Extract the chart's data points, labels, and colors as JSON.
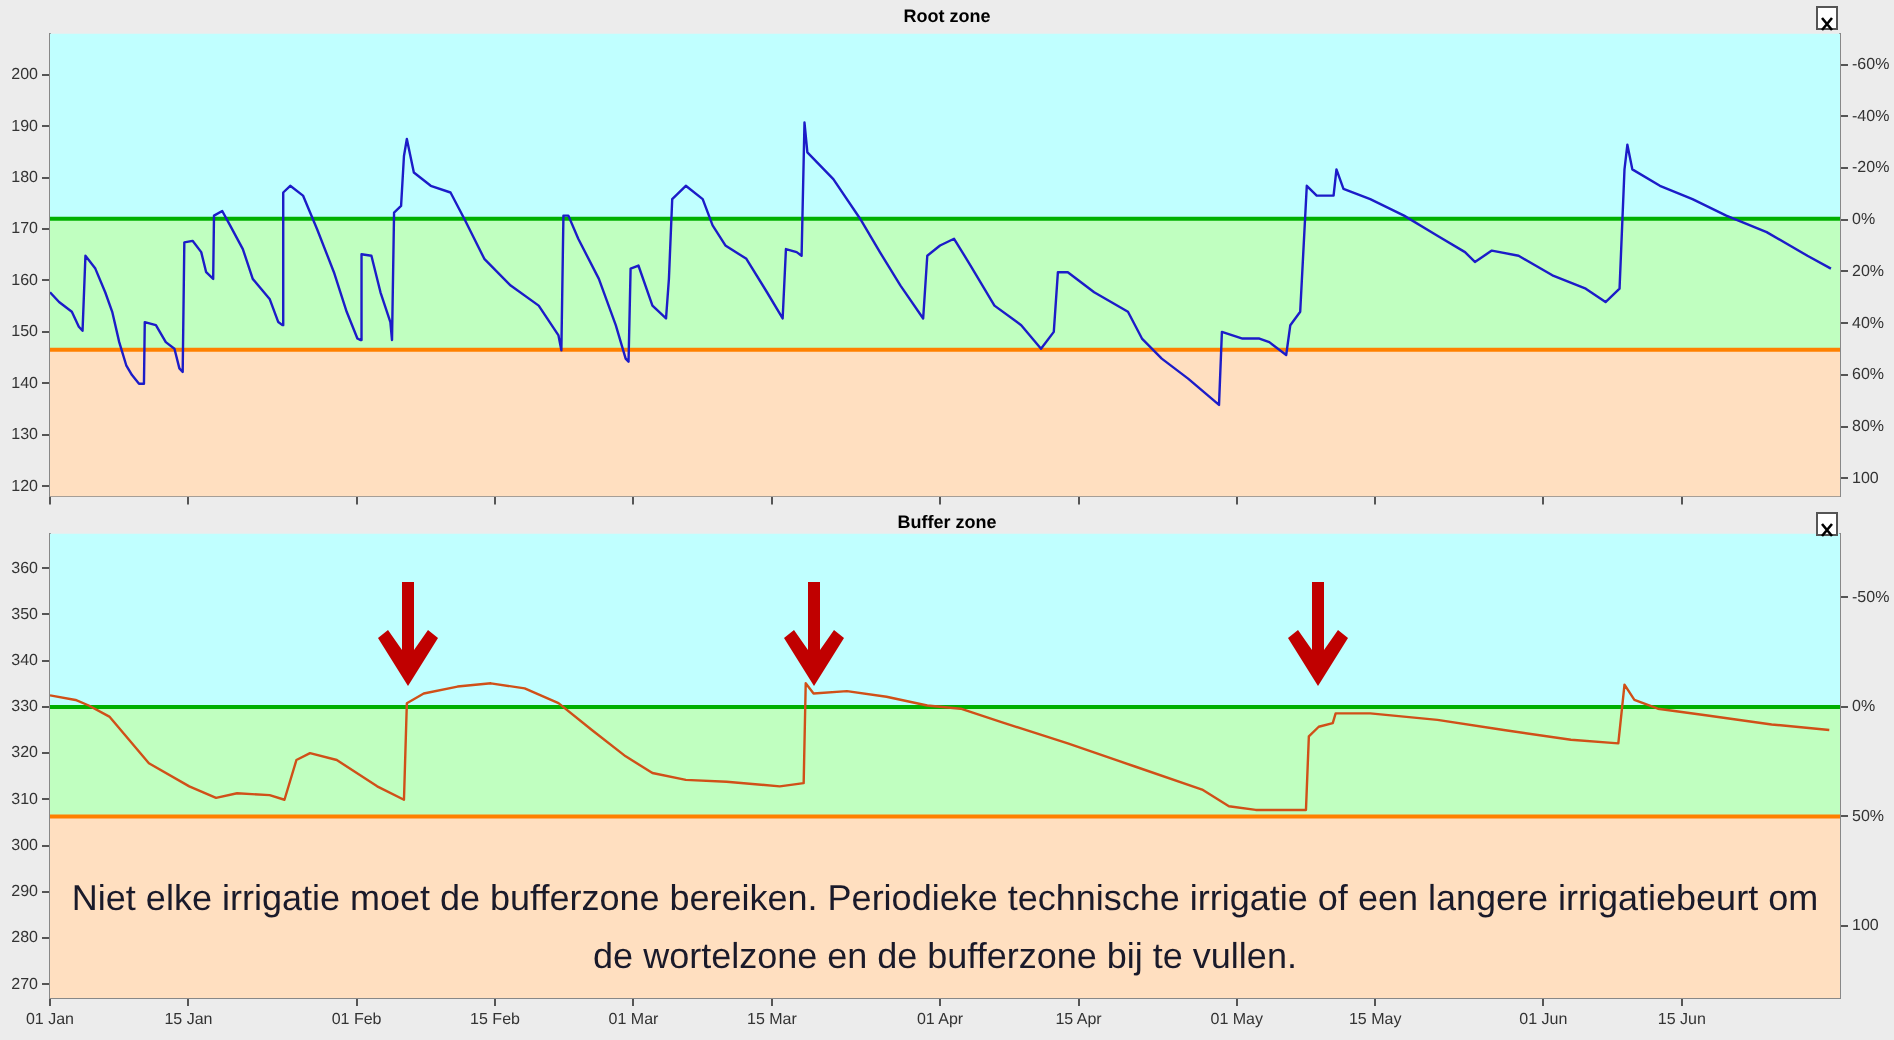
{
  "chart_data": [
    {
      "type": "line",
      "title": "Root zone",
      "legend": false,
      "grid": false,
      "tick_labels": "y",
      "xlim": [
        "--01-01",
        "--07-01"
      ],
      "xticks": [
        "--01-01",
        "--01-15",
        "--02-01",
        "--02-15",
        "--03-01",
        "--03-15",
        "--04-01",
        "--04-15",
        "--05-01",
        "--05-15",
        "--06-01",
        "--06-15"
      ],
      "ylim": [
        118,
        208
      ],
      "yticks": [
        120,
        130,
        140,
        150,
        160,
        170,
        180,
        190,
        200
      ],
      "y2lim": [
        107,
        -72
      ],
      "y2ticks": [
        {
          "value": -60,
          "label": "-60%"
        },
        {
          "value": -40,
          "label": "-40%"
        },
        {
          "value": -20,
          "label": "-20%"
        },
        {
          "value": 0,
          "label": "0%"
        },
        {
          "value": 20,
          "label": "20%"
        },
        {
          "value": 40,
          "label": "40%"
        },
        {
          "value": 60,
          "label": "60%"
        },
        {
          "value": 80,
          "label": "80%"
        },
        {
          "value": 100,
          "label": "100"
        }
      ],
      "bands": [
        {
          "axis": "y",
          "from": 172,
          "to": 208,
          "color": "#c0ffff"
        },
        {
          "axis": "y",
          "from": 146.5,
          "to": 172,
          "color": "#c0ffc0"
        },
        {
          "axis": "y",
          "from": 118,
          "to": 146.5,
          "color": "#ffdfc0"
        }
      ],
      "ref_lines": [
        {
          "axis": "y",
          "value": 172,
          "color": "#00b000"
        },
        {
          "axis": "y",
          "value": 146.5,
          "color": "#ff8000"
        }
      ],
      "series": [
        {
          "color": "#1c1cc8",
          "x": [
            "--01-01T00:00",
            "--01-01T22:00",
            "--01-03T05:00",
            "--01-03T22:00",
            "--01-04T07:00",
            "--01-04T14:00",
            "--01-05T14:00",
            "--01-06T14:00",
            "--01-07T07:00",
            "--01-08T00:00",
            "--01-08T17:00",
            "--01-09T07:00",
            "--01-10T00:00",
            "--01-10T12:00",
            "--01-10T14:00",
            "--01-11T17:00",
            "--01-12T17:00",
            "--01-13T14:00",
            "--01-14T02:00",
            "--01-14T10:00",
            "--01-14T14:00",
            "--01-15T10:00",
            "--01-16T07:00",
            "--01-16T19:00",
            "--01-17T12:00",
            "--01-17T14:00",
            "--01-18T10:00",
            "--01-19T05:00",
            "--01-20T12:00",
            "--01-21T12:00",
            "--01-23T05:00",
            "--01-24T02:00",
            "--01-24T12:00",
            "--01-24T14:00",
            "--01-25T07:00",
            "--01-26T14:00",
            "--01-28T00:00",
            "--01-29T17:00",
            "--01-31T00:00",
            "--02-01T02:00",
            "--02-01T10:00",
            "--02-01T12:00",
            "--02-02T12:00",
            "--02-03T10:00",
            "--02-04T10:00",
            "--02-04T14:00",
            "--02-04T19:00",
            "--02-05T12:00",
            "--02-05T19:00",
            "--02-06T02:00",
            "--02-06T19:00",
            "--02-08T12:00",
            "--02-10T12:00",
            "--02-11T22:00",
            "--02-13T22:00",
            "--02-16T14:00",
            "--02-19T10:00",
            "--02-21T10:00",
            "--02-21T17:00",
            "--02-21T22:00",
            "--02-22T10:00",
            "--02-23T10:00",
            "--02-25T12:00",
            "--02-27T05:00",
            "--02-28T05:00",
            "--02-28T12:00",
            "--02-28T17:00",
            "--03-01T12:00",
            "--03-02T22:00",
            "--03-04T07:00",
            "--03-04T14:00",
            "--03-04T22:00",
            "--03-06T07:00",
            "--03-08T00:00",
            "--03-09T00:00",
            "--03-10T07:00",
            "--03-12T10:00",
            "--03-14T12:00",
            "--03-16T02:00",
            "--03-16T10:00",
            "--03-17T12:00",
            "--03-18T00:00",
            "--03-18T07:00",
            "--03-18T14:00",
            "--03-21T05:00",
            "--03-23T22:00",
            "--03-25T22:00",
            "--03-28T00:00",
            "--03-30T07:00",
            "--03-30T17:00",
            "--04-01T00:00",
            "--04-02T10:00",
            "--04-04T02:00",
            "--04-06T12:00",
            "--04-09T05:00",
            "--04-11T05:00",
            "--04-12T12:00",
            "--04-12T22:00",
            "--04-13T22:00",
            "--04-16T14:00",
            "--04-20T00:00",
            "--04-21T10:00",
            "--04-23T10:00",
            "--04-26T02:00",
            "--04-29T05:00",
            "--04-29T12:00",
            "--05-01T14:00",
            "--05-03T07:00",
            "--05-04T07:00",
            "--05-06T00:00",
            "--05-06T10:00",
            "--05-07T10:00",
            "--05-08T02:00",
            "--05-09T02:00",
            "--05-10T19:00",
            "--05-11T02:00",
            "--05-11T19:00",
            "--05-14T12:00",
            "--05-17T22:00",
            "--05-21T07:00",
            "--05-24T02:00",
            "--05-25T02:00",
            "--05-26T19:00",
            "--05-29T12:00",
            "--06-01T22:00",
            "--06-05T07:00",
            "--06-07T07:00",
            "--06-08T17:00",
            "--06-09T05:00",
            "--06-09T12:00",
            "--06-10T00:00",
            "--06-12T19:00",
            "--06-16T02:00",
            "--06-19T12:00",
            "--06-23T14:00",
            "--06-27T17:00",
            "--06-30T02:00"
          ],
          "values": [
            157.7,
            155.8,
            153.9,
            151,
            150.2,
            164.8,
            162.3,
            157.7,
            153.9,
            148,
            143.5,
            141.6,
            139.9,
            139.9,
            151.9,
            151.3,
            148,
            146.7,
            142.9,
            142.2,
            167.4,
            167.7,
            165.5,
            161.6,
            160.3,
            172.6,
            173.5,
            170.7,
            166.1,
            160.3,
            156.4,
            151.9,
            151.3,
            177.1,
            178.4,
            176.5,
            170,
            161.6,
            153.9,
            148.7,
            148.4,
            165.1,
            164.8,
            157.7,
            151.9,
            148.4,
            173.2,
            174.5,
            184.2,
            187.5,
            181,
            178.4,
            177.1,
            171.9,
            164.2,
            159,
            155.1,
            149.3,
            146.4,
            172.6,
            172.6,
            168.1,
            160.3,
            151.3,
            144.8,
            144.2,
            162.3,
            162.9,
            155.1,
            152.6,
            160.3,
            175.8,
            178.4,
            175.8,
            170.7,
            166.8,
            164.2,
            157.7,
            152.6,
            166.1,
            165.5,
            164.8,
            190.7,
            184.9,
            179.7,
            172,
            165.5,
            159,
            152.6,
            164.8,
            166.8,
            168.1,
            162.9,
            155.1,
            151.3,
            146.7,
            150,
            161.6,
            161.6,
            157.7,
            153.9,
            148.7,
            144.8,
            140.9,
            135.8,
            150,
            148.7,
            148.7,
            148,
            145.5,
            151.3,
            153.9,
            178.4,
            176.5,
            176.5,
            181.6,
            177.8,
            175.8,
            172.6,
            168.7,
            165.5,
            163.6,
            165.8,
            164.8,
            161,
            158.4,
            155.8,
            158.4,
            181.6,
            186.4,
            181.6,
            178.4,
            175.8,
            172.6,
            169.4,
            164.8,
            162.3
          ]
        }
      ]
    },
    {
      "type": "line",
      "title": "Buffer zone",
      "legend": false,
      "grid": false,
      "xlim": [
        "--01-01",
        "--07-01"
      ],
      "xticks": [
        {
          "value": "--01-01",
          "label": "01 Jan"
        },
        {
          "value": "--01-15",
          "label": "15 Jan"
        },
        {
          "value": "--02-01",
          "label": "01 Feb"
        },
        {
          "value": "--02-15",
          "label": "15 Feb"
        },
        {
          "value": "--03-01",
          "label": "01 Mar"
        },
        {
          "value": "--03-15",
          "label": "15 Mar"
        },
        {
          "value": "--04-01",
          "label": "01 Apr"
        },
        {
          "value": "--04-15",
          "label": "15 Apr"
        },
        {
          "value": "--05-01",
          "label": "01 May"
        },
        {
          "value": "--05-15",
          "label": "15 May"
        },
        {
          "value": "--06-01",
          "label": "01 Jun"
        },
        {
          "value": "--06-15",
          "label": "15 Jun"
        }
      ],
      "ylim": [
        267,
        367.5
      ],
      "yticks": [
        270,
        280,
        290,
        300,
        310,
        320,
        330,
        340,
        350,
        360
      ],
      "y2lim": [
        133,
        -79
      ],
      "y2ticks": [
        {
          "value": -50,
          "label": "-50%"
        },
        {
          "value": 0,
          "label": "0%"
        },
        {
          "value": 50,
          "label": "50%"
        },
        {
          "value": 100,
          "label": "100"
        }
      ],
      "bands": [
        {
          "axis": "y",
          "from": 330,
          "to": 367.5,
          "color": "#c0ffff"
        },
        {
          "axis": "y",
          "from": 306.3,
          "to": 330,
          "color": "#c0ffc0"
        },
        {
          "axis": "y",
          "from": 267,
          "to": 306.3,
          "color": "#ffdfc0"
        }
      ],
      "ref_lines": [
        {
          "axis": "y",
          "value": 330,
          "color": "#00b000"
        },
        {
          "axis": "y",
          "value": 306.3,
          "color": "#ff8000"
        }
      ],
      "annotations": [
        "Niet elke irrigatie moet de bufferzone bereiken. Periodieke technische irrigatie of een langere irrigatiebeurt om de wortelzone en de bufferzone bij te vullen."
      ],
      "series": [
        {
          "color": "#d05018",
          "x": [
            "--01-01T00:00",
            "--01-03T14:00",
            "--01-04T22:00",
            "--01-07T00:00",
            "--01-11T00:00",
            "--01-15T02:00",
            "--01-17T19:00",
            "--01-19T22:00",
            "--01-23T05:00",
            "--01-24T17:00",
            "--01-25T22:00",
            "--01-27T07:00",
            "--01-30T00:00",
            "--02-03T02:00",
            "--02-05T19:00",
            "--02-06T02:00",
            "--02-07T19:00",
            "--02-11T05:00",
            "--02-14T14:00",
            "--02-18T00:00",
            "--02-21T10:00",
            "--02-24T19:00",
            "--02-28T05:00",
            "--03-02T22:00",
            "--03-06T07:00",
            "--03-10T10:00",
            "--03-15T19:00",
            "--03-18T05:00",
            "--03-18T10:00",
            "--03-19T05:00",
            "--03-22T14:00",
            "--03-26T14:00",
            "--03-30T17:00",
            "--04-03T02:00",
            "--04-07T05:00",
            "--04-13T22:00",
            "--04-20T17:00",
            "--04-27T12:00",
            "--04-30T05:00",
            "--05-02T22:00",
            "--05-08T00:00",
            "--05-08T07:00",
            "--05-09T07:00",
            "--05-10T17:00",
            "--05-11T00:00",
            "--05-14T12:00",
            "--05-21T07:00",
            "--05-28T00:00",
            "--06-03T19:00",
            "--06-08T14:00",
            "--06-09T05:00",
            "--06-10T05:00",
            "--06-12T14:00",
            "--06-17T10:00",
            "--06-24T02:00",
            "--06-29T22:00"
          ],
          "values": [
            332.5,
            331.5,
            330.3,
            327.9,
            317.8,
            312.8,
            310.3,
            311.3,
            310.9,
            309.9,
            318.5,
            320,
            318.5,
            312.8,
            309.9,
            330.8,
            332.9,
            334.4,
            335.1,
            334,
            330.8,
            325,
            319.3,
            315.7,
            314.2,
            313.8,
            312.8,
            313.5,
            335.1,
            332.9,
            333.4,
            332.2,
            330.3,
            329.6,
            326.7,
            322.1,
            317.1,
            312.1,
            308.5,
            307.7,
            307.7,
            323.6,
            325.7,
            326.5,
            328.6,
            328.6,
            327.2,
            325,
            322.9,
            322.1,
            334.8,
            331.5,
            329.6,
            328.2,
            326.2,
            325
          ]
        }
      ]
    }
  ]
}
